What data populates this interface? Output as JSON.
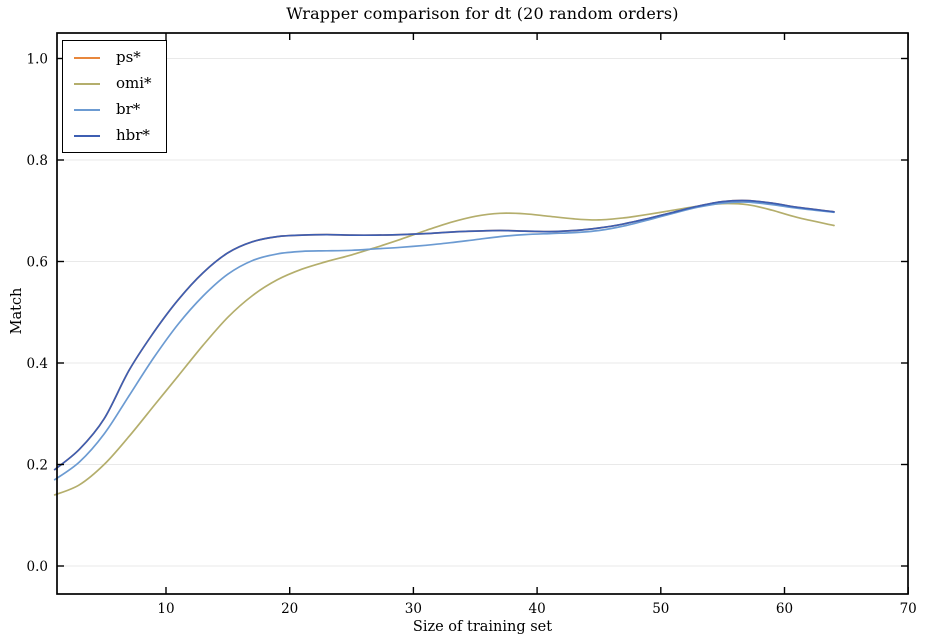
{
  "chart_data": {
    "type": "line",
    "title": "Wrapper comparison for dt (20 random orders)",
    "xlabel": "Size of training set",
    "ylabel": "Match",
    "xlim": [
      1.2,
      70
    ],
    "ylim": [
      -0.055,
      1.05
    ],
    "xticks": [
      10,
      20,
      30,
      40,
      50,
      60,
      70
    ],
    "xtick_labels": [
      "10",
      "20",
      "30",
      "40",
      "50",
      "60",
      "70"
    ],
    "yticks": [
      0.0,
      0.2,
      0.4,
      0.6,
      0.8,
      1.0
    ],
    "ytick_labels": [
      "0.0",
      "0.2",
      "0.4",
      "0.6",
      "0.8",
      "1.0"
    ],
    "grid": "horizontal-only",
    "legend_position": "upper-left",
    "x": [
      1,
      3,
      5,
      7,
      9,
      11,
      13,
      15,
      17,
      19,
      21,
      23,
      25,
      27,
      29,
      31,
      33,
      35,
      37,
      39,
      41,
      43,
      45,
      47,
      49,
      51,
      53,
      55,
      57,
      59,
      61,
      64
    ],
    "series": [
      {
        "name": "ps*",
        "color": "#e8873c",
        "values": [
          0.19,
          0.23,
          0.29,
          0.385,
          0.46,
          0.525,
          0.578,
          0.617,
          0.639,
          0.649,
          0.652,
          0.653,
          0.652,
          0.652,
          0.653,
          0.655,
          0.658,
          0.66,
          0.661,
          0.66,
          0.659,
          0.661,
          0.666,
          0.674,
          0.685,
          0.697,
          0.709,
          0.718,
          0.72,
          0.715,
          0.707,
          0.698
        ]
      },
      {
        "name": "omi*",
        "color": "#b4ae6c",
        "values": [
          0.14,
          0.16,
          0.2,
          0.255,
          0.315,
          0.375,
          0.435,
          0.49,
          0.533,
          0.564,
          0.585,
          0.6,
          0.613,
          0.628,
          0.644,
          0.661,
          0.677,
          0.689,
          0.695,
          0.694,
          0.689,
          0.684,
          0.682,
          0.686,
          0.693,
          0.701,
          0.709,
          0.714,
          0.712,
          0.701,
          0.687,
          0.671
        ]
      },
      {
        "name": "br*",
        "color": "#6c9bd2",
        "values": [
          0.17,
          0.205,
          0.26,
          0.335,
          0.41,
          0.477,
          0.532,
          0.575,
          0.602,
          0.615,
          0.62,
          0.621,
          0.622,
          0.625,
          0.628,
          0.632,
          0.637,
          0.643,
          0.649,
          0.653,
          0.655,
          0.657,
          0.661,
          0.67,
          0.682,
          0.695,
          0.707,
          0.715,
          0.717,
          0.712,
          0.705,
          0.697
        ]
      },
      {
        "name": "hbr*",
        "color": "#3d5eb2",
        "values": [
          0.19,
          0.23,
          0.29,
          0.385,
          0.46,
          0.525,
          0.578,
          0.617,
          0.639,
          0.649,
          0.652,
          0.653,
          0.652,
          0.652,
          0.653,
          0.655,
          0.658,
          0.66,
          0.661,
          0.66,
          0.659,
          0.661,
          0.666,
          0.674,
          0.685,
          0.697,
          0.709,
          0.718,
          0.72,
          0.715,
          0.707,
          0.698
        ]
      }
    ]
  },
  "colors": {
    "background": "#ffffff",
    "spine": "#000000",
    "grid": "#e9e9e9",
    "tick": "#000000",
    "text": "#000000"
  }
}
